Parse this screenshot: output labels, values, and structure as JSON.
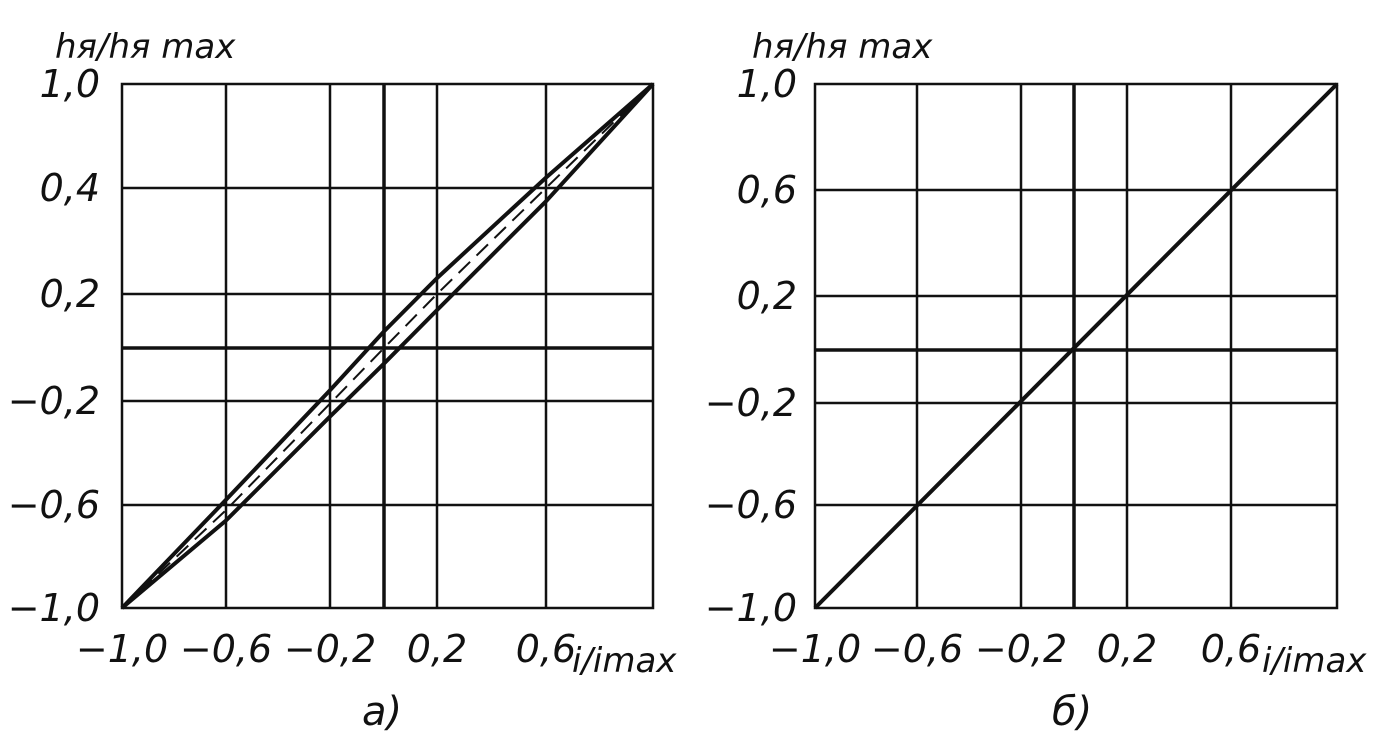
{
  "chart_data": [
    {
      "type": "line",
      "panel_label": "а)",
      "ylabel": "hя/hя max",
      "xlabel": "i/imax",
      "x_ticks": [
        "−1,0",
        "−0,6",
        "−0,2",
        "0,2",
        "0,6"
      ],
      "y_ticks": [
        "1,0",
        "0,4",
        "0,2",
        "−0,2",
        "−0,6",
        "−1,0"
      ],
      "series": [
        {
          "style": "solid-heavy",
          "x": [
            -1.0,
            -0.6,
            -0.2,
            0.0,
            0.2,
            0.6,
            1.0
          ],
          "y": [
            -1.0,
            -0.58,
            -0.16,
            0.06,
            0.26,
            0.64,
            1.0
          ]
        },
        {
          "style": "solid-heavy",
          "x": [
            -1.0,
            -0.6,
            -0.2,
            0.0,
            0.2,
            0.6,
            1.0
          ],
          "y": [
            -1.0,
            -0.66,
            -0.26,
            -0.06,
            0.14,
            0.55,
            1.0
          ]
        },
        {
          "style": "dashed",
          "x": [
            -1.0,
            -0.6,
            -0.2,
            0.0,
            0.2,
            0.6,
            1.0
          ],
          "y": [
            -1.0,
            -0.62,
            -0.21,
            0.0,
            0.2,
            0.6,
            1.0
          ]
        }
      ]
    },
    {
      "type": "line",
      "panel_label": "б)",
      "ylabel": "hя/hя max",
      "xlabel": "i/imax",
      "x_ticks": [
        "−1,0",
        "−0,6",
        "−0,2",
        "0,2",
        "0,6"
      ],
      "y_ticks": [
        "1,0",
        "0,6",
        "0,2",
        "−0,2",
        "−0,6",
        "−1,0"
      ],
      "series": [
        {
          "style": "solid-heavy",
          "x": [
            -1.0,
            1.0
          ],
          "y": [
            -1.0,
            1.0
          ]
        }
      ]
    }
  ]
}
